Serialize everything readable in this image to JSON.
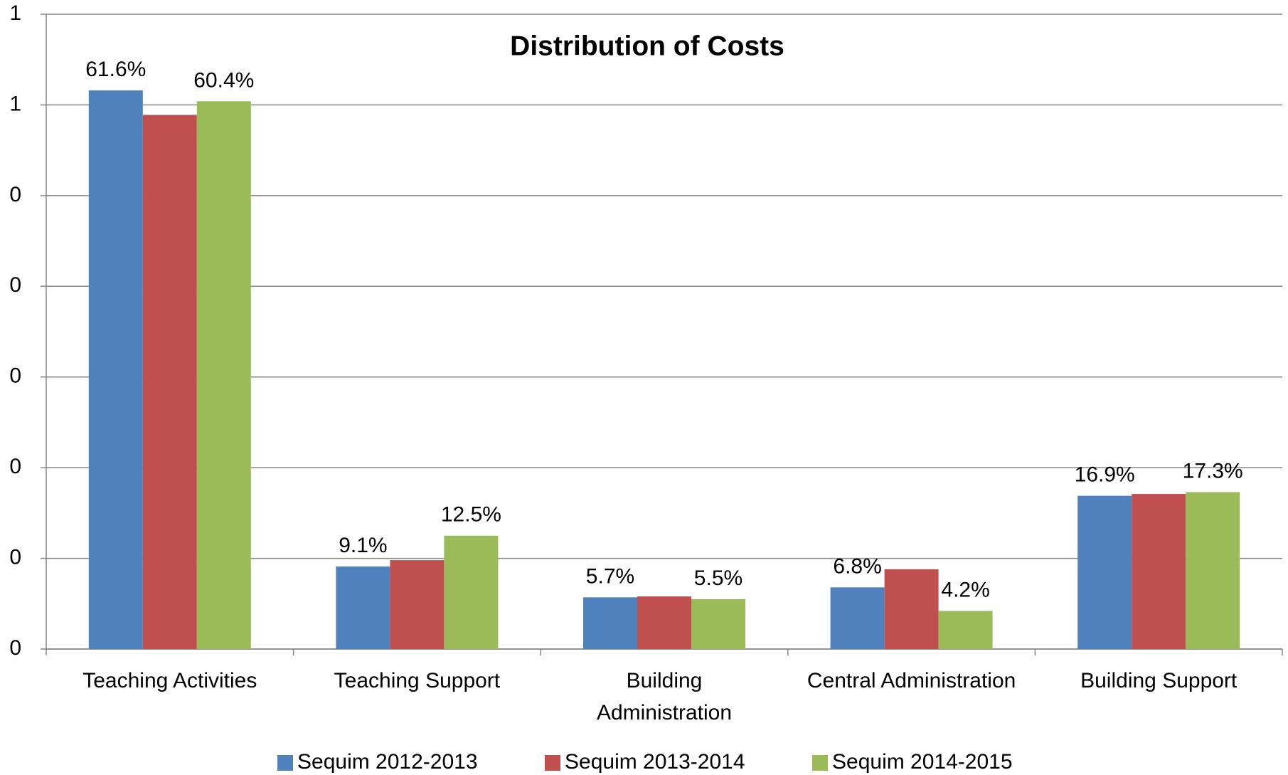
{
  "chart_data": {
    "type": "bar",
    "title": "Distribution of Costs",
    "categories": [
      "Teaching Activities",
      "Teaching Support",
      "Building\nAdministration",
      "Central Administration",
      "Building Support"
    ],
    "series": [
      {
        "name": "Sequim 2012-2013",
        "color": "#4f81bd",
        "values": [
          0.616,
          0.091,
          0.057,
          0.068,
          0.169
        ],
        "value_labels": [
          "61.6%",
          "9.1%",
          "5.7%",
          "6.8%",
          "16.9%"
        ]
      },
      {
        "name": "Sequim 2013-2014",
        "color": "#c0504d",
        "values": [
          0.589,
          0.098,
          0.058,
          0.088,
          0.171
        ]
      },
      {
        "name": "Sequim 2014-2015",
        "color": "#9bbb59",
        "values": [
          0.604,
          0.125,
          0.055,
          0.042,
          0.173
        ],
        "value_labels": [
          "60.4%",
          "12.5%",
          "5.5%",
          "4.2%",
          "17.3%"
        ]
      }
    ],
    "ylim": [
      0,
      0.7
    ],
    "yticks": [
      0,
      {
        "value": 0.1,
        "label": "0"
      },
      {
        "value": 0.2,
        "label": "0"
      },
      {
        "value": 0.3,
        "label": "0"
      },
      {
        "value": 0.4,
        "label": "0"
      },
      {
        "value": 0.5,
        "label": "0"
      },
      {
        "value": 0.6,
        "label": "1"
      },
      {
        "value": 0.7,
        "label": "1"
      }
    ],
    "grid": true,
    "legend": "bottom"
  }
}
